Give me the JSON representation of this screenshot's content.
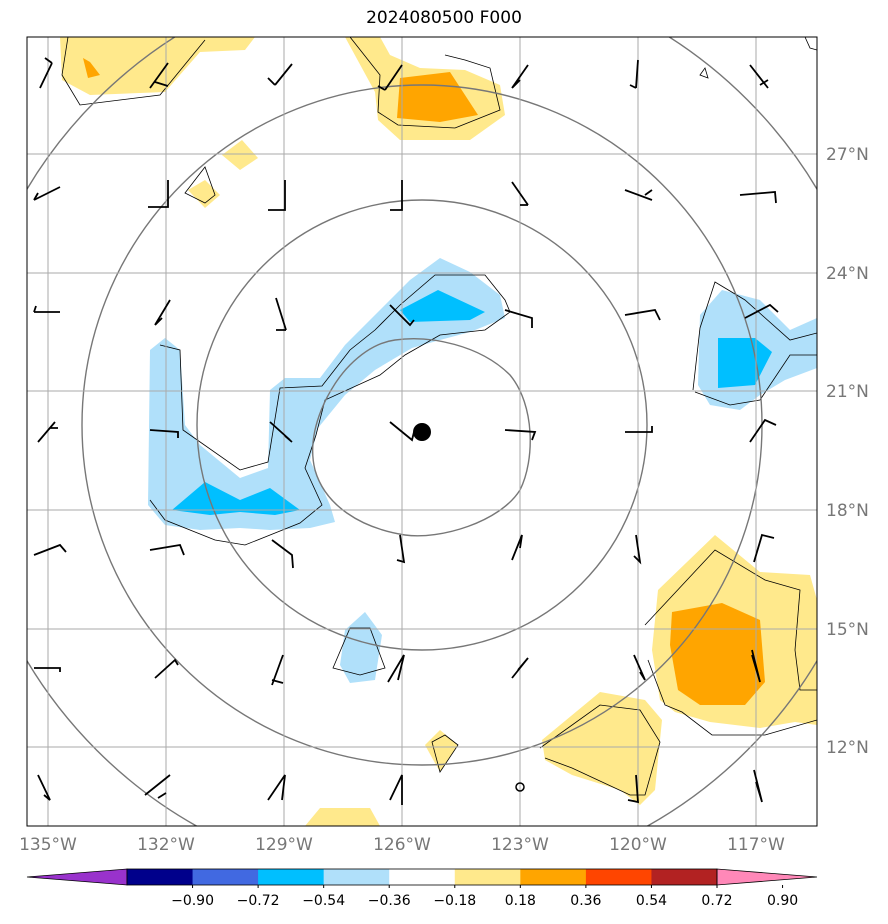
{
  "title": "2024080500 F000",
  "map": {
    "lon_ticks": [
      "135°W",
      "132°W",
      "129°W",
      "126°W",
      "123°W",
      "120°W",
      "117°W"
    ],
    "lat_ticks": [
      "27°N",
      "24°N",
      "21°N",
      "18°N",
      "15°N",
      "12°N"
    ],
    "center_marker": "storm-center-dot"
  },
  "colorbar": {
    "labels": [
      "−0.90",
      "−0.72",
      "−0.54",
      "−0.36",
      "−0.18",
      "0.18",
      "0.36",
      "0.54",
      "0.72",
      "0.90"
    ],
    "colors": [
      "#9932cc",
      "#00008b",
      "#4169e1",
      "#00bfff",
      "#b0e0fa",
      "#ffffff",
      "#ffe98c",
      "#ffa500",
      "#ff4500",
      "#b22222",
      "#ff88b8"
    ]
  },
  "colors": {
    "grid": "#aaaaaa",
    "range_rings": "#777777",
    "contour_line": "#000000"
  }
}
